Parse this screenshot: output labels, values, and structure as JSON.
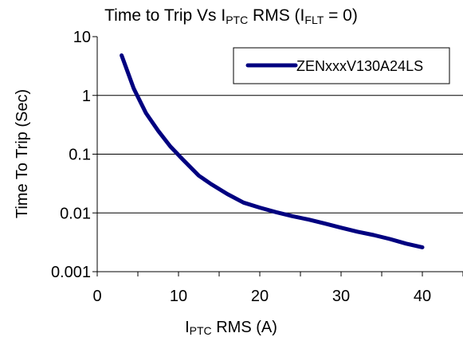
{
  "chart_data": {
    "type": "line",
    "title": "Time to Trip Vs I",
    "title_sub": "PTC",
    "title_rest": " RMS (I",
    "title_sub2": "FLT",
    "title_end": " = 0)",
    "xlabel_main": "I",
    "xlabel_sub": "PTC",
    "xlabel_rest": " RMS (A)",
    "ylabel": "Time To Trip (Sec)",
    "x_ticks": [
      "0",
      "10",
      "20",
      "30",
      "40"
    ],
    "y_ticks": [
      "10",
      "1",
      "0.1",
      "0.01",
      "0.001"
    ],
    "xlim": [
      0,
      45
    ],
    "ylim": [
      0.001,
      10
    ],
    "y_scale": "log",
    "grid": "horizontal",
    "legend_position": "top-right",
    "series": [
      {
        "name": "ZENxxxV130A24LS",
        "color": "#000080",
        "x": [
          3,
          4.5,
          6,
          7.5,
          9,
          10.5,
          12.5,
          14,
          16,
          18,
          20,
          22,
          24,
          26,
          28,
          30,
          32,
          34,
          36,
          38,
          40
        ],
        "y": [
          4.8,
          1.3,
          0.5,
          0.25,
          0.135,
          0.082,
          0.043,
          0.031,
          0.021,
          0.015,
          0.0123,
          0.0103,
          0.0088,
          0.0077,
          0.0066,
          0.0056,
          0.0048,
          0.0042,
          0.0036,
          0.003,
          0.0026
        ]
      }
    ]
  }
}
